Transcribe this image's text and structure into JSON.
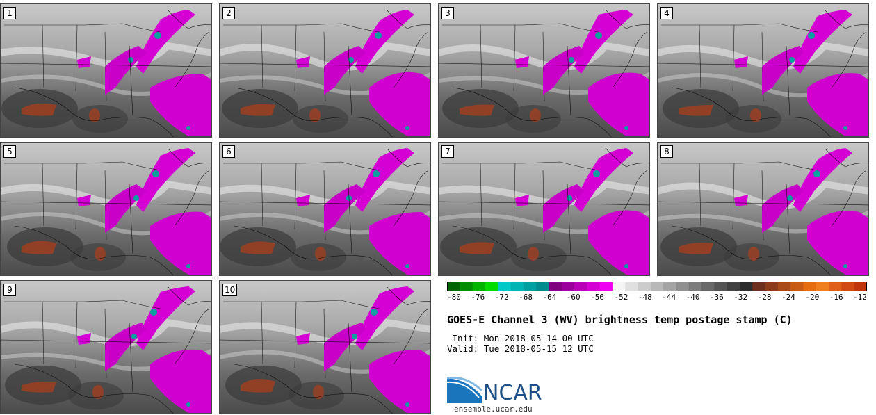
{
  "title": "GOES-E Channel 3 (WV) brightness temp postage stamp (C)",
  "init_label": " Init:",
  "init_value": "Mon 2018-05-14 00 UTC",
  "valid_label": "Valid:",
  "valid_value": "Tue 2018-05-15 12 UTC",
  "panels": [
    "1",
    "2",
    "3",
    "4",
    "5",
    "6",
    "7",
    "8",
    "9",
    "10"
  ],
  "colorbar": {
    "ticks": [
      "-80",
      "-76",
      "-72",
      "-68",
      "-64",
      "-60",
      "-56",
      "-52",
      "-48",
      "-44",
      "-40",
      "-36",
      "-32",
      "-28",
      "-24",
      "-20",
      "-16",
      "-12"
    ],
    "colors": [
      "#006400",
      "#008c00",
      "#00b400",
      "#00dc00",
      "#00c8c8",
      "#00b4b4",
      "#00a0a0",
      "#008c8c",
      "#800080",
      "#9c009c",
      "#b800b8",
      "#d400d4",
      "#f000f0",
      "#f5f5f5",
      "#e0e0e0",
      "#cccccc",
      "#b8b8b8",
      "#a4a4a4",
      "#909090",
      "#7c7c7c",
      "#686868",
      "#545454",
      "#404040",
      "#2c2c2c",
      "#6e2e1e",
      "#8c3a1a",
      "#aa4a18",
      "#c85a14",
      "#e66c10",
      "#f07f1e",
      "#e0601a",
      "#d04a12",
      "#c0360a"
    ]
  },
  "logo": {
    "name": "NCAR",
    "url": "ensemble.ucar.edu"
  }
}
